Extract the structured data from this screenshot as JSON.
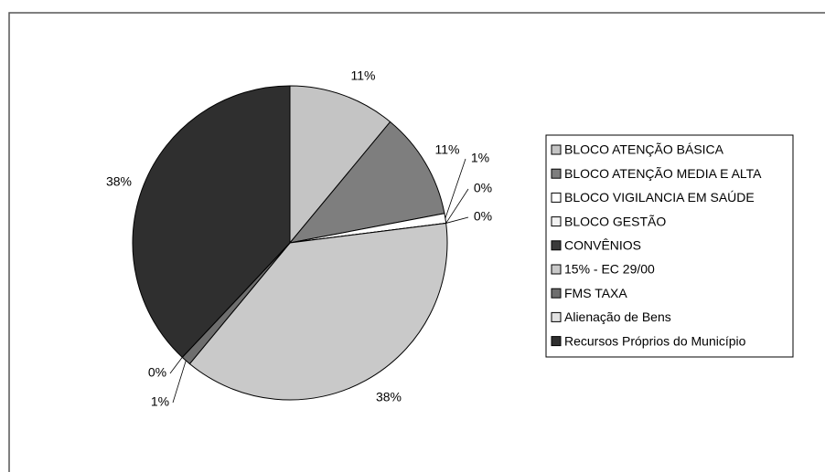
{
  "chart_data": {
    "type": "pie",
    "categories": [
      "BLOCO ATENÇÃO BÁSICA",
      "BLOCO ATENÇÃO MEDIA E ALTA",
      "BLOCO VIGILANCIA EM SAÚDE",
      "BLOCO GESTÃO",
      "CONVÊNIOS",
      "15% - EC 29/00",
      "FMS TAXA",
      "Alienação de Bens",
      "Recursos Próprios do Município"
    ],
    "values": [
      11,
      11,
      1,
      0,
      0,
      38,
      1,
      0,
      38
    ],
    "value_labels": [
      "11%",
      "11%",
      "1%",
      "0%",
      "0%",
      "38%",
      "1%",
      "0%",
      "38%"
    ],
    "colors": [
      "#c4c4c4",
      "#7e7e7e",
      "#ffffff",
      "#f2f2f2",
      "#3a3a3a",
      "#c9c9c9",
      "#6e6e6e",
      "#e2e2e2",
      "#2f2f2f"
    ],
    "legend": "right"
  }
}
